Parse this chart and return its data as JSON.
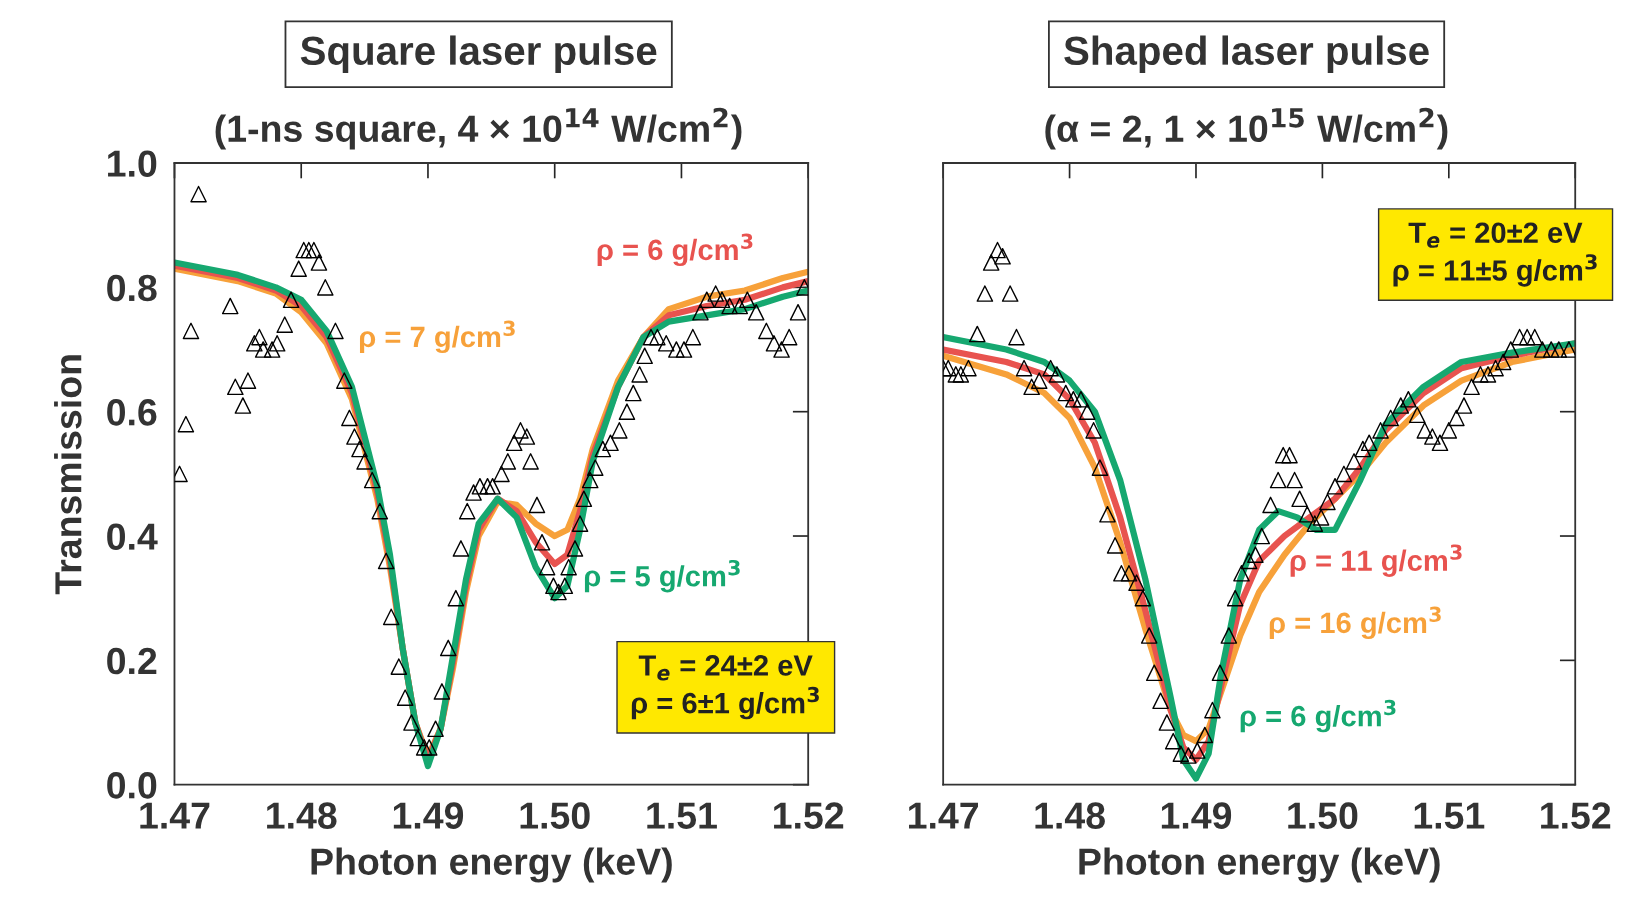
{
  "chart_data": [
    {
      "type": "line",
      "title": "Square laser pulse",
      "subtitle": "(1-ns square, 4 × 10$^{14}$ W/cm$^{2}$)",
      "xlabel": "Photon energy (keV)",
      "ylabel": "Transmission",
      "annotations": [
        "T$_{e}$ = 24±2 eV\nρ = 6±1 g/cm$^{3}$"
      ],
      "xlim": [
        1.47,
        1.52
      ],
      "ylim": [
        0,
        1.0
      ],
      "xticks": [
        {
          "value": 1.47,
          "label": "1.47"
        },
        {
          "value": 1.48,
          "label": "1.48"
        },
        {
          "value": 1.49,
          "label": "1.49"
        },
        {
          "value": 1.5,
          "label": "1.50"
        },
        {
          "value": 1.51,
          "label": "1.51"
        },
        {
          "value": 1.52,
          "label": "1.52"
        }
      ],
      "yticks": [
        {
          "value": 0,
          "label": "0.0"
        },
        {
          "value": 0.2,
          "label": "0.2"
        },
        {
          "value": 0.4,
          "label": "0.4"
        },
        {
          "value": 0.6,
          "label": "0.6"
        },
        {
          "value": 0.8,
          "label": "0.8"
        },
        {
          "value": 1.0,
          "label": "1.0"
        }
      ],
      "grid": false,
      "legend": false,
      "series": [
        {
          "name": "ρ = 7 g/cm$^{3}$",
          "color": "#f7a13a",
          "marker": "none",
          "x": [
            1.47,
            1.475,
            1.478,
            1.48,
            1.482,
            1.484,
            1.486,
            1.487,
            1.488,
            1.489,
            1.49,
            1.491,
            1.492,
            1.493,
            1.494,
            1.4955,
            1.497,
            1.4985,
            1.5,
            1.501,
            1.502,
            1.503,
            1.505,
            1.507,
            1.509,
            1.512,
            1.515,
            1.518,
            1.52
          ],
          "values": [
            0.83,
            0.81,
            0.79,
            0.76,
            0.71,
            0.62,
            0.46,
            0.35,
            0.22,
            0.1,
            0.045,
            0.09,
            0.19,
            0.31,
            0.4,
            0.455,
            0.45,
            0.42,
            0.4,
            0.41,
            0.46,
            0.54,
            0.65,
            0.72,
            0.765,
            0.785,
            0.795,
            0.815,
            0.825
          ]
        },
        {
          "name": "ρ = 6 g/cm$^{3}$",
          "color": "#e8534f",
          "marker": "none",
          "x": [
            1.47,
            1.475,
            1.478,
            1.48,
            1.482,
            1.484,
            1.486,
            1.487,
            1.488,
            1.489,
            1.49,
            1.491,
            1.492,
            1.493,
            1.494,
            1.4955,
            1.497,
            1.4985,
            1.5,
            1.501,
            1.502,
            1.503,
            1.505,
            1.507,
            1.509,
            1.512,
            1.515,
            1.518,
            1.52
          ],
          "values": [
            0.835,
            0.815,
            0.795,
            0.77,
            0.72,
            0.63,
            0.47,
            0.36,
            0.22,
            0.1,
            0.04,
            0.09,
            0.2,
            0.32,
            0.41,
            0.46,
            0.44,
            0.39,
            0.355,
            0.37,
            0.44,
            0.53,
            0.64,
            0.72,
            0.755,
            0.77,
            0.78,
            0.8,
            0.81
          ]
        },
        {
          "name": "ρ = 5 g/cm$^{3}$",
          "color": "#16a870",
          "marker": "none",
          "x": [
            1.47,
            1.475,
            1.478,
            1.48,
            1.482,
            1.484,
            1.486,
            1.487,
            1.488,
            1.489,
            1.49,
            1.491,
            1.492,
            1.493,
            1.494,
            1.4955,
            1.497,
            1.4985,
            1.5,
            1.501,
            1.502,
            1.503,
            1.505,
            1.507,
            1.509,
            1.512,
            1.515,
            1.518,
            1.52
          ],
          "values": [
            0.84,
            0.82,
            0.8,
            0.78,
            0.73,
            0.64,
            0.48,
            0.37,
            0.22,
            0.1,
            0.03,
            0.09,
            0.21,
            0.33,
            0.42,
            0.46,
            0.43,
            0.35,
            0.3,
            0.32,
            0.41,
            0.52,
            0.64,
            0.72,
            0.745,
            0.755,
            0.765,
            0.785,
            0.795
          ]
        },
        {
          "type": "scatter",
          "color": "#000000",
          "marker": "triangle",
          "x": [
            1.4704,
            1.4709,
            1.4713,
            1.4719,
            1.4744,
            1.4748,
            1.4754,
            1.4758,
            1.4763,
            1.4767,
            1.477,
            1.4777,
            1.4781,
            1.4787,
            1.4792,
            1.4798,
            1.4802,
            1.4806,
            1.481,
            1.4814,
            1.4819,
            1.4827,
            1.4834,
            1.4838,
            1.4842,
            1.4846,
            1.485,
            1.4856,
            1.4862,
            1.4867,
            1.4871,
            1.4877,
            1.4882,
            1.4887,
            1.4892,
            1.4897,
            1.4901,
            1.4906,
            1.4911,
            1.4916,
            1.4922,
            1.4926,
            1.4931,
            1.4936,
            1.4941,
            1.4947,
            1.4951,
            1.4958,
            1.4963,
            1.4968,
            1.4973,
            1.4978,
            1.4981,
            1.4986,
            1.499,
            1.4994,
            1.4999,
            1.5003,
            1.5008,
            1.5011,
            1.5016,
            1.502,
            1.5023,
            1.5028,
            1.5032,
            1.5038,
            1.5044,
            1.5051,
            1.5057,
            1.5062,
            1.5067,
            1.5071,
            1.5076,
            1.5081,
            1.5088,
            1.5096,
            1.5102,
            1.5109,
            1.5115,
            1.512,
            1.5127,
            1.5132,
            1.5138,
            1.5146,
            1.5152,
            1.5159,
            1.5167,
            1.5173,
            1.5179,
            1.5185,
            1.5192,
            1.5197
          ],
          "values": [
            0.5,
            0.58,
            0.73,
            0.95,
            0.77,
            0.64,
            0.61,
            0.65,
            0.71,
            0.72,
            0.7,
            0.7,
            0.71,
            0.74,
            0.78,
            0.83,
            0.86,
            0.86,
            0.86,
            0.84,
            0.8,
            0.73,
            0.65,
            0.59,
            0.56,
            0.54,
            0.52,
            0.49,
            0.44,
            0.36,
            0.27,
            0.19,
            0.14,
            0.1,
            0.075,
            0.06,
            0.06,
            0.09,
            0.15,
            0.22,
            0.3,
            0.38,
            0.44,
            0.47,
            0.48,
            0.48,
            0.48,
            0.5,
            0.52,
            0.55,
            0.57,
            0.56,
            0.52,
            0.45,
            0.39,
            0.35,
            0.32,
            0.31,
            0.32,
            0.35,
            0.38,
            0.42,
            0.46,
            0.49,
            0.51,
            0.54,
            0.55,
            0.57,
            0.6,
            0.63,
            0.66,
            0.69,
            0.72,
            0.72,
            0.71,
            0.7,
            0.7,
            0.72,
            0.76,
            0.78,
            0.79,
            0.78,
            0.77,
            0.77,
            0.78,
            0.76,
            0.73,
            0.71,
            0.7,
            0.72,
            0.76,
            0.8
          ]
        }
      ]
    },
    {
      "type": "line",
      "title": "Shaped laser pulse",
      "subtitle": "(α = 2, 1 × 10$^{15}$ W/cm$^{2}$)",
      "xlabel": "Photon energy (keV)",
      "annotations": [
        "T$_{e}$ = 20±2 eV\nρ = 11±5 g/cm$^{3}$"
      ],
      "xlim": [
        1.47,
        1.52
      ],
      "ylim": [
        0,
        1.0
      ],
      "xticks": [
        {
          "value": 1.47,
          "label": "1.47"
        },
        {
          "value": 1.48,
          "label": "1.48"
        },
        {
          "value": 1.49,
          "label": "1.49"
        },
        {
          "value": 1.5,
          "label": "1.50"
        },
        {
          "value": 1.51,
          "label": "1.51"
        },
        {
          "value": 1.52,
          "label": "1.52"
        }
      ],
      "yticks": [
        {
          "value": 0,
          "label": null
        },
        {
          "value": 0.2,
          "label": null
        },
        {
          "value": 0.4,
          "label": null
        },
        {
          "value": 0.6,
          "label": null
        },
        {
          "value": 0.8,
          "label": null
        },
        {
          "value": 1.0,
          "label": null
        }
      ],
      "tick_labels": "x",
      "grid": false,
      "legend": false,
      "series": [
        {
          "name": "ρ = 16 g/cm$^{3}$",
          "color": "#f7a13a",
          "marker": "none",
          "x": [
            1.47,
            1.475,
            1.478,
            1.48,
            1.482,
            1.484,
            1.486,
            1.488,
            1.489,
            1.49,
            1.491,
            1.492,
            1.4935,
            1.495,
            1.497,
            1.499,
            1.501,
            1.503,
            1.505,
            1.508,
            1.511,
            1.515,
            1.52
          ],
          "values": [
            0.69,
            0.66,
            0.63,
            0.59,
            0.51,
            0.39,
            0.25,
            0.12,
            0.08,
            0.07,
            0.09,
            0.15,
            0.24,
            0.31,
            0.37,
            0.42,
            0.46,
            0.5,
            0.55,
            0.61,
            0.65,
            0.68,
            0.7
          ]
        },
        {
          "name": "ρ = 11 g/cm$^{3}$",
          "color": "#e8534f",
          "marker": "none",
          "x": [
            1.47,
            1.475,
            1.478,
            1.48,
            1.482,
            1.484,
            1.486,
            1.488,
            1.489,
            1.49,
            1.491,
            1.492,
            1.4935,
            1.495,
            1.497,
            1.499,
            1.501,
            1.503,
            1.505,
            1.508,
            1.511,
            1.515,
            1.52
          ],
          "values": [
            0.7,
            0.68,
            0.66,
            0.62,
            0.55,
            0.43,
            0.28,
            0.12,
            0.06,
            0.04,
            0.07,
            0.16,
            0.29,
            0.36,
            0.4,
            0.43,
            0.46,
            0.51,
            0.57,
            0.63,
            0.67,
            0.69,
            0.71
          ]
        },
        {
          "name": "ρ = 6 g/cm$^{3}$",
          "color": "#16a870",
          "marker": "none",
          "x": [
            1.47,
            1.475,
            1.478,
            1.48,
            1.482,
            1.484,
            1.486,
            1.488,
            1.489,
            1.49,
            1.491,
            1.492,
            1.4935,
            1.495,
            1.4965,
            1.498,
            1.4995,
            1.501,
            1.503,
            1.505,
            1.508,
            1.511,
            1.515,
            1.52
          ],
          "values": [
            0.72,
            0.7,
            0.68,
            0.65,
            0.6,
            0.49,
            0.33,
            0.14,
            0.04,
            0.01,
            0.05,
            0.18,
            0.33,
            0.41,
            0.44,
            0.43,
            0.41,
            0.41,
            0.49,
            0.58,
            0.64,
            0.68,
            0.695,
            0.71
          ]
        },
        {
          "type": "scatter",
          "color": "#000000",
          "marker": "triangle",
          "x": [
            1.47,
            1.4704,
            1.471,
            1.4714,
            1.472,
            1.4727,
            1.4733,
            1.4738,
            1.4743,
            1.4747,
            1.4753,
            1.4758,
            1.4764,
            1.477,
            1.4776,
            1.4785,
            1.479,
            1.4797,
            1.4803,
            1.4809,
            1.4814,
            1.4819,
            1.4824,
            1.483,
            1.4836,
            1.4841,
            1.4847,
            1.4853,
            1.4858,
            1.4863,
            1.4867,
            1.4872,
            1.4877,
            1.4882,
            1.4888,
            1.4894,
            1.4901,
            1.4907,
            1.4913,
            1.4919,
            1.4926,
            1.4931,
            1.4936,
            1.4942,
            1.4947,
            1.4952,
            1.4959,
            1.4965,
            1.4969,
            1.4974,
            1.4978,
            1.4982,
            1.4988,
            1.4994,
            1.4999,
            1.5004,
            1.501,
            1.5017,
            1.5025,
            1.5032,
            1.5037,
            1.5046,
            1.5054,
            1.5062,
            1.5068,
            1.5075,
            1.5081,
            1.5087,
            1.5093,
            1.51,
            1.5106,
            1.5112,
            1.5118,
            1.5125,
            1.5131,
            1.5137,
            1.5143,
            1.5149,
            1.5156,
            1.5162,
            1.5168,
            1.5174,
            1.5181,
            1.5187,
            1.5195
          ],
          "values": [
            0.67,
            0.67,
            0.66,
            0.66,
            0.67,
            0.725,
            0.79,
            0.84,
            0.86,
            0.85,
            0.79,
            0.72,
            0.67,
            0.64,
            0.65,
            0.67,
            0.66,
            0.63,
            0.62,
            0.62,
            0.6,
            0.57,
            0.51,
            0.435,
            0.385,
            0.34,
            0.34,
            0.325,
            0.3,
            0.24,
            0.18,
            0.135,
            0.1,
            0.07,
            0.05,
            0.047,
            0.055,
            0.08,
            0.12,
            0.18,
            0.24,
            0.3,
            0.34,
            0.36,
            0.37,
            0.4,
            0.45,
            0.49,
            0.53,
            0.53,
            0.49,
            0.46,
            0.435,
            0.42,
            0.43,
            0.455,
            0.48,
            0.5,
            0.52,
            0.54,
            0.55,
            0.57,
            0.59,
            0.61,
            0.62,
            0.595,
            0.57,
            0.56,
            0.55,
            0.57,
            0.59,
            0.61,
            0.64,
            0.66,
            0.66,
            0.67,
            0.68,
            0.7,
            0.72,
            0.72,
            0.72,
            0.7,
            0.7,
            0.7,
            0.7
          ]
        }
      ]
    }
  ]
}
